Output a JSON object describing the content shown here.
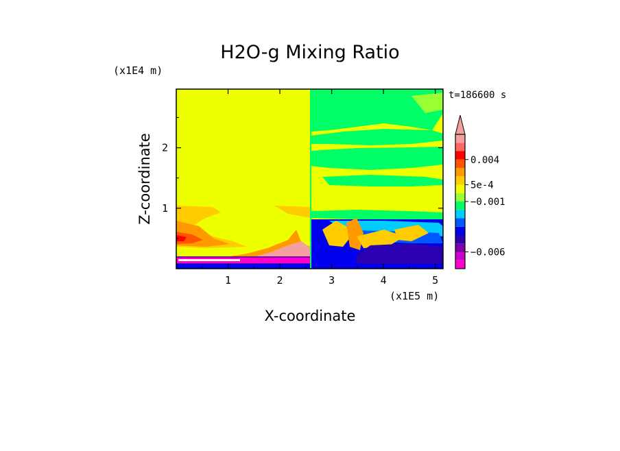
{
  "chart_data": {
    "type": "heatmap",
    "title": "H2O-g Mixing Ratio",
    "xlabel": "X-coordinate",
    "ylabel": "Z-coordinate",
    "x_unit": "(x1E5 m)",
    "y_unit": "(x1E4 m)",
    "time_label": "t=186600 s",
    "xlim": [
      0,
      5.15
    ],
    "ylim": [
      0,
      2.97
    ],
    "x_ticks": [
      1,
      2,
      3,
      4,
      5
    ],
    "x_tick_labels": [
      "1",
      "2",
      "3",
      "4",
      "5"
    ],
    "y_ticks": [
      1,
      2
    ],
    "y_tick_labels": [
      "1",
      "2"
    ],
    "colorbar": {
      "colors": [
        "#ff00cc",
        "#cc00cc",
        "#7a00a8",
        "#2a00b0",
        "#0000ee",
        "#0059ff",
        "#00ccff",
        "#00ff66",
        "#99ff33",
        "#eeff00",
        "#ffcc00",
        "#ff9900",
        "#ff5500",
        "#ff0000",
        "#ff6666",
        "#f4a0a0"
      ],
      "labeled_levels": [
        {
          "label": "0.004",
          "index": 13
        },
        {
          "label": "5e-4",
          "index": 10
        },
        {
          "label": "−0.001",
          "index": 8
        },
        {
          "label": "−0.006",
          "index": 2
        }
      ],
      "extend": "max"
    },
    "regions": [
      {
        "name": "upper-domain",
        "value_level": "yellow",
        "x": [
          0,
          2.6
        ],
        "y": [
          0,
          2.97
        ]
      },
      {
        "name": "right-upper-band",
        "value_level": "green",
        "x": [
          2.6,
          5.15
        ],
        "y": [
          2.3,
          2.97
        ]
      },
      {
        "name": "right-mid-band",
        "value_level": "green",
        "x": [
          2.6,
          5.15
        ],
        "y": [
          1.1,
          1.5
        ]
      },
      {
        "name": "right-low-band",
        "value_level": "blue",
        "x": [
          2.6,
          5.15
        ],
        "y": [
          0,
          0.85
        ]
      },
      {
        "name": "left-low-band",
        "value_level": "orange",
        "x": [
          0,
          0.6
        ],
        "y": [
          0.35,
          1.0
        ]
      },
      {
        "name": "boundary-layer",
        "value_level": "magenta",
        "x": [
          0,
          5.15
        ],
        "y": [
          0,
          0.2
        ]
      }
    ]
  }
}
